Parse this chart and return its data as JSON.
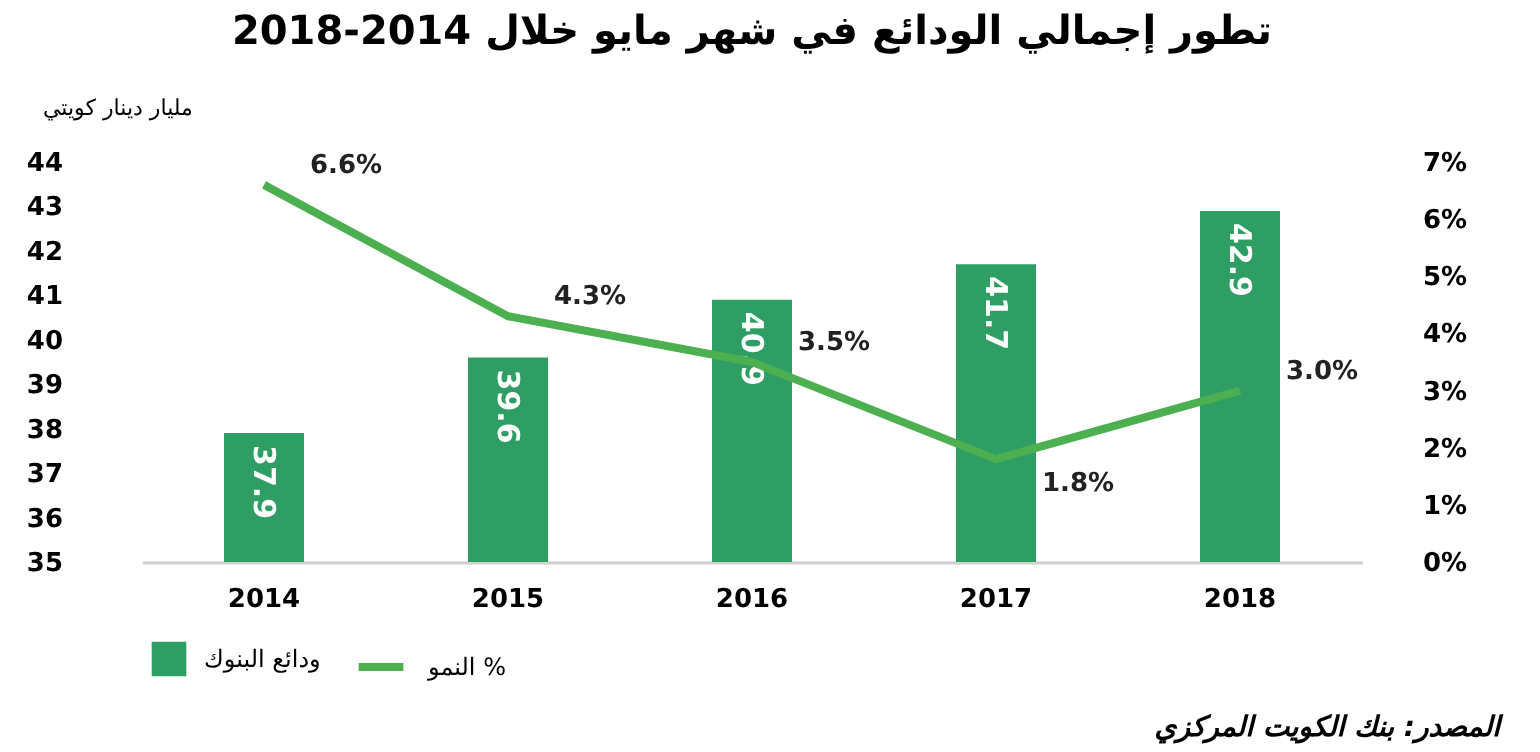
{
  "chart_data": {
    "type": "bar",
    "title": "تطور إجمالي  الودائع في شهر  مايو خلال 2014-2018",
    "ylabel": "مليار دينار كويتي",
    "categories": [
      "2014",
      "2015",
      "2016",
      "2017",
      "2018"
    ],
    "series": [
      {
        "name": "ودائع البنوك",
        "color": "#2e9e64",
        "values": [
          37.9,
          39.6,
          40.9,
          41.7,
          42.9
        ]
      },
      {
        "name": "النمو %",
        "type": "line",
        "axis": "y2",
        "color": "#4caf50",
        "values": [
          6.6,
          4.3,
          3.5,
          1.8,
          3.0
        ],
        "value_labels": [
          "6.6%",
          "4.3%",
          "3.5%",
          "1.8%",
          "3.0%"
        ]
      }
    ],
    "data_labels": true,
    "ylim": [
      35,
      44
    ],
    "yticks": [
      35,
      36,
      37,
      38,
      39,
      40,
      41,
      42,
      43,
      44
    ],
    "y2lim": [
      0,
      7
    ],
    "y2ticks": [
      {
        "value": 0,
        "label": "0%"
      },
      {
        "value": 1,
        "label": "1%"
      },
      {
        "value": 2,
        "label": "2%"
      },
      {
        "value": 3,
        "label": "3%"
      },
      {
        "value": 4,
        "label": "4%"
      },
      {
        "value": 5,
        "label": "5%"
      },
      {
        "value": 6,
        "label": "6%"
      },
      {
        "value": 7,
        "label": "7%"
      }
    ],
    "legend": "bottom",
    "annotations": [
      "المصدر: بنك الكويت المركزي"
    ]
  }
}
